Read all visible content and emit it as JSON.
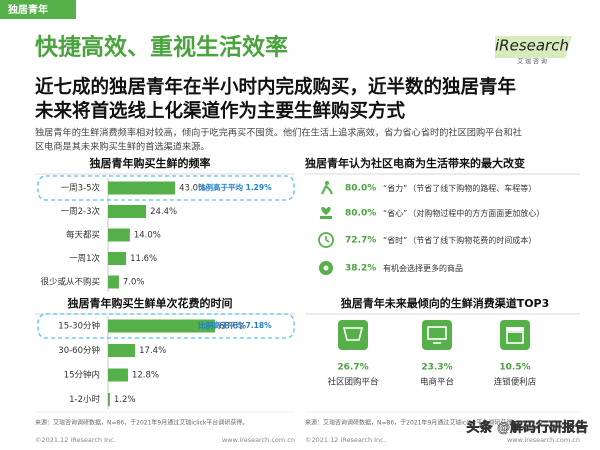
{
  "tag": "独居青年",
  "title": "快捷高效、重视生活效率",
  "logo": {
    "brand": "iResearch",
    "sub": "艾 瑞 咨 询"
  },
  "headline": [
    "近七成的独居青年在半小时内完成购买，近半数的独居青年",
    "未来将首选线上化渠道作为主要生鲜购买方式"
  ],
  "summary": [
    "独居青年的生鲜消费频率相对较高，倾向于吃完再买不囤货。他们在生活上追求高效，省力省心省时的社区团购平台和社",
    "区电商是其未来购买生鲜的首选渠道来源。"
  ],
  "left_charts": [
    {
      "type": "bar",
      "title": "独居青年购买生鲜的频率",
      "categories": [
        "一周3-5次",
        "一周2-3次",
        "每天都买",
        "一周1次",
        "很少或从不购买"
      ],
      "values": [
        43.0,
        24.4,
        14.0,
        11.6,
        7.0
      ],
      "value_labels": [
        "43.0%",
        "24.4%",
        "14.0%",
        "11.6%",
        "7.0%"
      ],
      "callout": "比例高于平均 1.29%",
      "color": "#55b04a"
    },
    {
      "type": "bar",
      "title": "独居青年购买生鲜单次花费的时间",
      "categories": [
        "15-30分钟",
        "30-60分钟",
        "15分钟内",
        "1-2小时"
      ],
      "values": [
        68.6,
        17.4,
        12.8,
        1.2
      ],
      "value_labels": [
        "68.6%",
        "17.4%",
        "12.8%",
        "1.2%"
      ],
      "callout": "比例高于平均 7.18%",
      "color": "#55b04a"
    }
  ],
  "changes": {
    "title": "独居青年认为社区电商为生活带来的最大改变",
    "items": [
      {
        "percent": "80.0%",
        "label": "“省力”",
        "note": "（节省了线下购物的路程、车程等）"
      },
      {
        "percent": "80.0%",
        "label": "“省心”",
        "note": "（对购物过程中的方方面面更加放心）"
      },
      {
        "percent": "72.7%",
        "label": "“省时”",
        "note": "（节省了线下购物花费的时间成本）"
      },
      {
        "percent": "38.2%",
        "label": "有机会选择更多的商品"
      }
    ]
  },
  "channels": {
    "title": "独居青年未来最倾向的生鲜消费渠道TOP3",
    "items": [
      {
        "percent": "26.7%",
        "label": "社区团购平台"
      },
      {
        "percent": "23.3%",
        "label": "电商平台"
      },
      {
        "percent": "10.5%",
        "label": "连锁便利店"
      }
    ]
  },
  "footer": {
    "source": "来源：艾瑞咨询调研数据，N=86，于2021年9月通过艾瑞iclick平台调研获得。",
    "copyright": "©2021.12 iResearch Inc.",
    "site": "www.iresearch.com.cn"
  },
  "watermark": "头条 @解码行研报告"
}
